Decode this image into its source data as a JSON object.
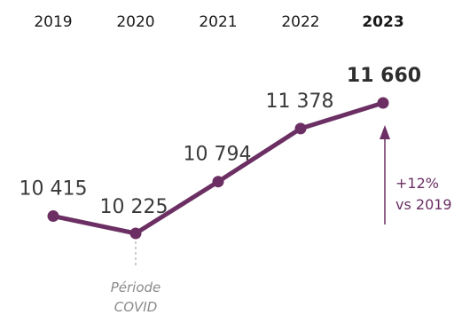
{
  "chart_data": {
    "type": "line",
    "categories": [
      "2019",
      "2020",
      "2021",
      "2022",
      "2023"
    ],
    "values": [
      10415,
      10225,
      10794,
      11378,
      11660
    ],
    "value_labels": [
      "10 415",
      "10 225",
      "10 794",
      "11 378",
      "11 660"
    ],
    "highlight_index": 4,
    "line_color": "#6b2f63",
    "annotation": {
      "index": 1,
      "line1": "Période",
      "line2": "COVID"
    },
    "growth": {
      "line1": "+12%",
      "line2": "vs 2019"
    }
  }
}
